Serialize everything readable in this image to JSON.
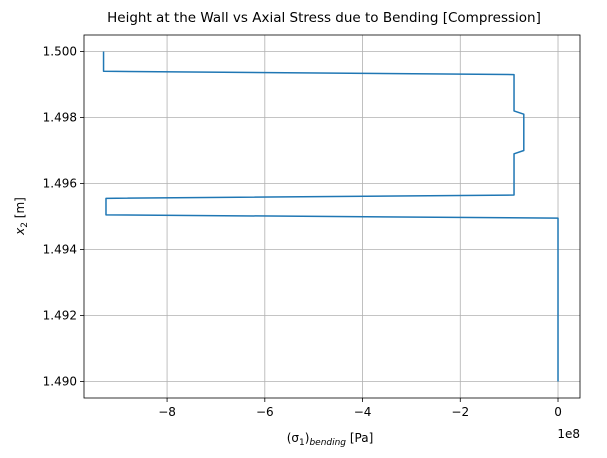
{
  "chart_data": {
    "type": "line",
    "title": "Height at the Wall vs Axial Stress due to Bending [Compression]",
    "xlabel_base": "(σ",
    "xlabel_base_sub": "1",
    "xlabel_close": ")",
    "xlabel_sub": "bending",
    "xlabel_unit": " [Pa]",
    "ylabel_var": "x",
    "ylabel_sub": "2",
    "ylabel_unit": " [m]",
    "x_offset_text": "1e8",
    "x_scale": 100000000,
    "xlim": [
      -9.7,
      0.45
    ],
    "ylim": [
      1.4895,
      1.5005
    ],
    "xticks": [
      -8,
      -6,
      -4,
      -2,
      0
    ],
    "xtick_labels": [
      "−8",
      "−6",
      "−4",
      "−2",
      "0"
    ],
    "yticks": [
      1.49,
      1.492,
      1.494,
      1.496,
      1.498,
      1.5
    ],
    "ytick_labels": [
      "1.490",
      "1.492",
      "1.494",
      "1.496",
      "1.498",
      "1.500"
    ],
    "grid": true,
    "series": [
      {
        "color": "#1f77b4",
        "x": [
          -9.3,
          -9.3,
          -0.9,
          -0.9,
          -0.7,
          -0.7,
          -0.9,
          -0.9,
          -9.25,
          -9.25,
          0.0,
          0.0
        ],
        "y": [
          1.5,
          1.4994,
          1.4993,
          1.4982,
          1.4981,
          1.497,
          1.4969,
          1.49565,
          1.49555,
          1.49505,
          1.49495,
          1.49
        ]
      }
    ]
  }
}
